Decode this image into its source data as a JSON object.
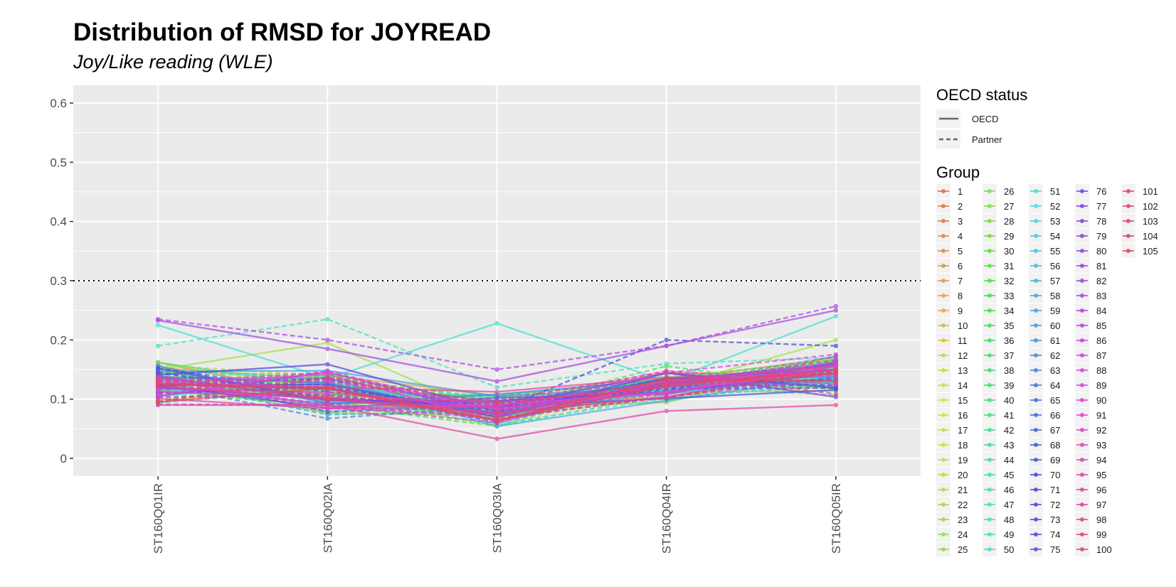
{
  "chart_data": {
    "type": "line",
    "title": "Distribution of RMSD for JOYREAD",
    "subtitle": "Joy/Like reading (WLE)",
    "xlabel": "",
    "ylabel": "",
    "categories": [
      "ST160Q01IR",
      "ST160Q02IA",
      "ST160Q03IA",
      "ST160Q04IR",
      "ST160Q05IR"
    ],
    "ylim": [
      -0.03,
      0.63
    ],
    "yticks": [
      0,
      0.1,
      0.2,
      0.3,
      0.4,
      0.5,
      0.6
    ],
    "ytick_labels": [
      "0",
      "0.1",
      "0.2",
      "0.3",
      "0.4",
      "0.5",
      "0.6"
    ],
    "reference_line": {
      "y": 0.3,
      "style": "dotted",
      "color": "#000000"
    },
    "panel_background": "#ebebeb",
    "grid": true,
    "legend_placement": "right",
    "linetype_legend": {
      "title": "OECD status",
      "entries": [
        {
          "label": "OECD",
          "linetype": "solid"
        },
        {
          "label": "Partner",
          "linetype": "dashed"
        }
      ]
    },
    "group_legend_title": "Group",
    "groups": [
      "1",
      "2",
      "3",
      "4",
      "5",
      "6",
      "7",
      "8",
      "9",
      "10",
      "11",
      "12",
      "13",
      "14",
      "15",
      "16",
      "17",
      "18",
      "19",
      "20",
      "21",
      "22",
      "23",
      "24",
      "25",
      "26",
      "27",
      "28",
      "29",
      "30",
      "31",
      "32",
      "33",
      "34",
      "35",
      "36",
      "37",
      "38",
      "39",
      "40",
      "41",
      "42",
      "43",
      "44",
      "45",
      "46",
      "47",
      "48",
      "49",
      "50",
      "51",
      "52",
      "53",
      "54",
      "55",
      "56",
      "57",
      "58",
      "59",
      "60",
      "61",
      "62",
      "63",
      "64",
      "65",
      "66",
      "67",
      "68",
      "69",
      "70",
      "71",
      "72",
      "73",
      "74",
      "75",
      "76",
      "77",
      "78",
      "79",
      "80",
      "81",
      "82",
      "83",
      "84",
      "85",
      "86",
      "87",
      "88",
      "89",
      "90",
      "91",
      "92",
      "93",
      "94",
      "95",
      "96",
      "97",
      "98",
      "99",
      "100",
      "101",
      "102",
      "103",
      "104",
      "105"
    ],
    "series_summary": "105 group series; each group has one RMSD value per item",
    "highlighted_series": [
      {
        "group": "50",
        "status": "OECD",
        "values": [
          0.225,
          0.135,
          0.228,
          0.13,
          0.24
        ]
      },
      {
        "group": "49",
        "status": "Partner",
        "values": [
          0.19,
          0.235,
          0.12,
          0.16,
          0.17
        ]
      },
      {
        "group": "83",
        "status": "Partner",
        "values": [
          0.235,
          0.2,
          0.15,
          0.19,
          0.257
        ]
      },
      {
        "group": "82",
        "status": "OECD",
        "values": [
          0.233,
          0.185,
          0.13,
          0.19,
          0.25
        ]
      },
      {
        "group": "22",
        "status": "OECD",
        "values": [
          0.15,
          0.195,
          0.07,
          0.12,
          0.2
        ]
      },
      {
        "group": "71",
        "status": "Partner",
        "values": [
          0.11,
          0.12,
          0.08,
          0.2,
          0.19
        ]
      },
      {
        "group": "96",
        "status": "OECD",
        "values": [
          0.09,
          0.09,
          0.033,
          0.08,
          0.09
        ]
      }
    ],
    "typical_range": {
      "ST160Q01IR": [
        0.068,
        0.235
      ],
      "ST160Q02IA": [
        0.045,
        0.235
      ],
      "ST160Q03IA": [
        0.033,
        0.228
      ],
      "ST160Q04IR": [
        0.078,
        0.2
      ],
      "ST160Q05IR": [
        0.082,
        0.257
      ]
    },
    "colors": {
      "series_palette": "hue wheel, group 1 red through group 105 pink",
      "panel": "#ebebeb",
      "grid": "#ffffff"
    }
  }
}
